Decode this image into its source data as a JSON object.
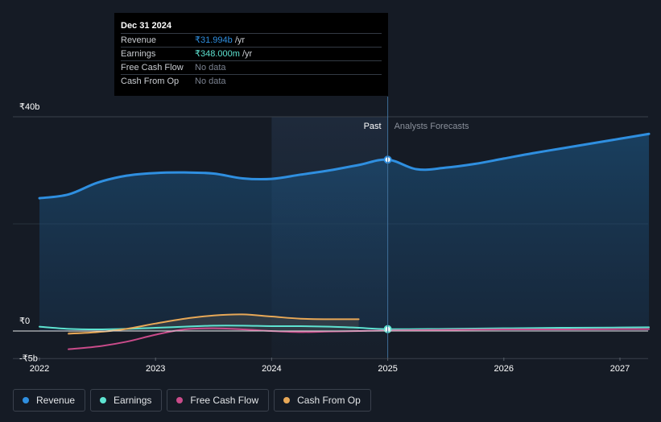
{
  "chart_data": {
    "type": "line",
    "x_domain": [
      2021.8,
      2027.25
    ],
    "y_domain": [
      -5,
      40
    ],
    "y_unit": "₹b",
    "divider_x": 2025.0,
    "highlight_range": [
      2024.0,
      2025.0
    ],
    "y_ticks": [
      {
        "value": 40,
        "label": "₹40b"
      },
      {
        "value": 0,
        "label": "₹0"
      },
      {
        "value": -5,
        "label": "-₹5b"
      }
    ],
    "x_ticks": [
      {
        "value": 2022,
        "label": "2022"
      },
      {
        "value": 2023,
        "label": "2023"
      },
      {
        "value": 2024,
        "label": "2024"
      },
      {
        "value": 2025,
        "label": "2025"
      },
      {
        "value": 2026,
        "label": "2026"
      },
      {
        "value": 2027,
        "label": "2027"
      }
    ],
    "labels": {
      "past": "Past",
      "forecast": "Analysts Forecasts"
    },
    "series": [
      {
        "name": "Revenue",
        "color": "#2f8fe0",
        "fill": true,
        "stroke_width": 3,
        "x": [
          2022.0,
          2022.25,
          2022.5,
          2022.75,
          2023.0,
          2023.25,
          2023.5,
          2023.75,
          2024.0,
          2024.25,
          2024.5,
          2024.75,
          2025.0,
          2025.25,
          2025.5,
          2025.75,
          2026.0,
          2026.25,
          2026.5,
          2026.75,
          2027.0,
          2027.25
        ],
        "values": [
          24.8,
          25.5,
          27.7,
          29.0,
          29.5,
          29.6,
          29.4,
          28.5,
          28.4,
          29.2,
          30.0,
          31.0,
          31.994,
          30.2,
          30.5,
          31.2,
          32.2,
          33.2,
          34.1,
          35.0,
          35.9,
          36.8
        ]
      },
      {
        "name": "Earnings",
        "color": "#5ee3d1",
        "fill": false,
        "stroke_width": 2,
        "x": [
          2022.0,
          2022.25,
          2022.5,
          2022.75,
          2023.0,
          2023.25,
          2023.5,
          2023.75,
          2024.0,
          2024.25,
          2024.5,
          2024.75,
          2025.0,
          2025.5,
          2026.0,
          2026.5,
          2027.0,
          2027.25
        ],
        "values": [
          0.8,
          0.4,
          0.3,
          0.4,
          0.6,
          0.8,
          1.0,
          1.0,
          0.9,
          0.9,
          0.8,
          0.6,
          0.348,
          0.4,
          0.5,
          0.6,
          0.65,
          0.7
        ]
      },
      {
        "name": "Free Cash Flow",
        "color": "#c94b8a",
        "fill": false,
        "stroke_width": 2,
        "x": [
          2022.25,
          2022.5,
          2022.75,
          2023.0,
          2023.25,
          2023.5,
          2023.75,
          2024.0,
          2024.25,
          2024.5,
          2024.75,
          2025.0,
          2025.5,
          2026.0,
          2026.5,
          2027.0,
          2027.25
        ],
        "values": [
          -3.4,
          -2.9,
          -2.0,
          -0.7,
          0.3,
          0.5,
          0.3,
          0.0,
          -0.2,
          -0.1,
          0.0,
          0.1,
          0.2,
          0.3,
          0.3,
          0.35,
          0.35
        ]
      },
      {
        "name": "Cash From Op",
        "color": "#e8a857",
        "fill": false,
        "stroke_width": 2,
        "x": [
          2022.25,
          2022.5,
          2022.75,
          2023.0,
          2023.25,
          2023.5,
          2023.75,
          2024.0,
          2024.25,
          2024.5,
          2024.75
        ],
        "values": [
          -0.5,
          -0.2,
          0.4,
          1.4,
          2.3,
          2.9,
          3.1,
          2.7,
          2.3,
          2.2,
          2.2
        ]
      }
    ]
  },
  "tooltip": {
    "date": "Dec 31 2024",
    "rows": [
      {
        "label": "Revenue",
        "value": "₹31.994b",
        "unit": "/yr"
      },
      {
        "label": "Earnings",
        "value": "₹348.000m",
        "unit": "/yr"
      },
      {
        "label": "Free Cash Flow",
        "value": "No data",
        "unit": ""
      },
      {
        "label": "Cash From Op",
        "value": "No data",
        "unit": ""
      }
    ]
  },
  "legend": [
    {
      "label": "Revenue",
      "color": "#2f8fe0"
    },
    {
      "label": "Earnings",
      "color": "#5ee3d1"
    },
    {
      "label": "Free Cash Flow",
      "color": "#c94b8a"
    },
    {
      "label": "Cash From Op",
      "color": "#e8a857"
    }
  ]
}
